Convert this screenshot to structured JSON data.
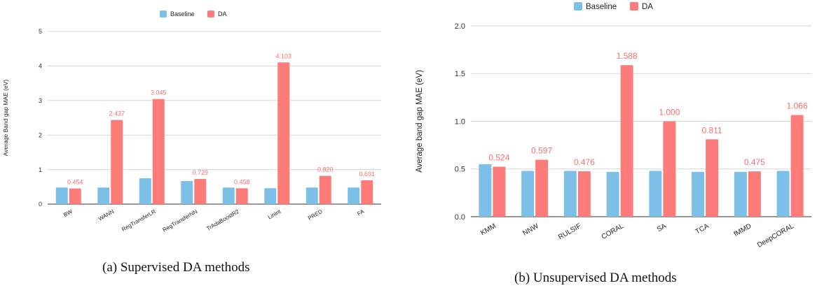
{
  "chart_data": [
    {
      "type": "bar",
      "caption": "(a) Supervised DA methods",
      "ylabel": "Average Band gap MAE (eV)",
      "xlabel": "",
      "ylim": [
        0,
        5
      ],
      "yticks": [
        "0",
        "1",
        "2",
        "3",
        "4",
        "5"
      ],
      "yticks_values": [
        0,
        1,
        2,
        3,
        4,
        5
      ],
      "grid": true,
      "legend_position": "top-center",
      "categories": [
        "BW",
        "WANN",
        "RegTransferLR",
        "RegTransferNN",
        "TrAdaBoostR2",
        "LinInt",
        "PRED",
        "FA"
      ],
      "series": [
        {
          "name": "Baseline",
          "color": "#7cc0e8",
          "values": [
            0.48,
            0.48,
            0.75,
            0.67,
            0.48,
            0.46,
            0.48,
            0.48
          ],
          "labels": []
        },
        {
          "name": "DA",
          "color": "#fd7b79",
          "values": [
            0.454,
            2.437,
            3.045,
            0.729,
            0.458,
            4.103,
            0.82,
            0.691
          ],
          "labels": [
            "0.454",
            "2.437",
            "3.045",
            "0.729",
            "0.458",
            "4.103",
            "0.820",
            "0.691"
          ]
        }
      ]
    },
    {
      "type": "bar",
      "caption": "(b) Unsupervised DA methods",
      "ylabel": "Average band gap MAE (eV)",
      "xlabel": "",
      "ylim": [
        0,
        2
      ],
      "yticks": [
        "0.0",
        "0.5",
        "1.0",
        "1.5",
        "2.0"
      ],
      "yticks_values": [
        0,
        0.5,
        1.0,
        1.5,
        2.0
      ],
      "grid": true,
      "legend_position": "top-center",
      "categories": [
        "KMM",
        "NNW",
        "RULSIF",
        "CORAL",
        "SA",
        "TCA",
        "fMMD",
        "DeepCORAL"
      ],
      "series": [
        {
          "name": "Baseline",
          "color": "#7cc0e8",
          "values": [
            0.55,
            0.48,
            0.48,
            0.47,
            0.48,
            0.47,
            0.47,
            0.48
          ],
          "labels": []
        },
        {
          "name": "DA",
          "color": "#fd7b79",
          "values": [
            0.524,
            0.597,
            0.476,
            1.588,
            1.0,
            0.811,
            0.475,
            1.066
          ],
          "labels": [
            "0.524",
            "0.597",
            "0.476",
            "1.588",
            "1.000",
            "0.811",
            "0.475",
            "1.066"
          ]
        }
      ]
    }
  ]
}
